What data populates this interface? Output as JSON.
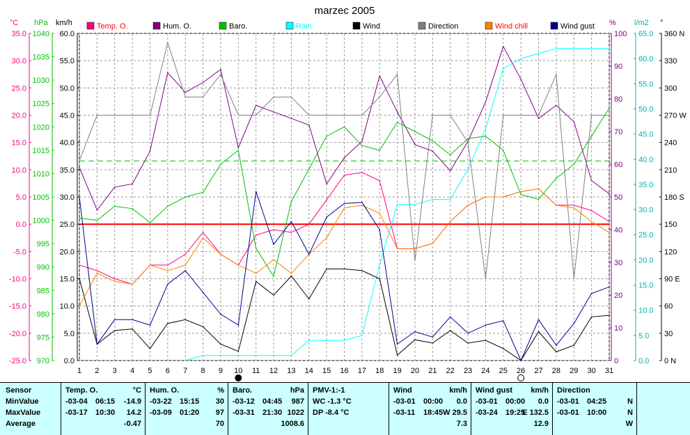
{
  "title": "marzec 2005",
  "unit_labels": {
    "temp": "°C",
    "baro": "hPa",
    "wind": "km/h",
    "hum": "%",
    "rain": "l/m2",
    "dir": "°"
  },
  "legend": [
    {
      "label": "Temp. O.",
      "color": "#ff0080"
    },
    {
      "label": "Hum. O.",
      "color": "#800080"
    },
    {
      "label": "Baro.",
      "color": "#00c000"
    },
    {
      "label": "Rain",
      "color": "#00ffff"
    },
    {
      "label": "Wind",
      "color": "#000000"
    },
    {
      "label": "Direction",
      "color": "#808080"
    },
    {
      "label": "Wind chill",
      "color": "#ff8000"
    },
    {
      "label": "Wind gust",
      "color": "#000090"
    }
  ],
  "chart_data": {
    "type": "line",
    "title": "marzec 2005",
    "x": [
      1,
      2,
      3,
      4,
      5,
      6,
      7,
      8,
      9,
      10,
      11,
      12,
      13,
      14,
      15,
      16,
      17,
      18,
      19,
      20,
      21,
      22,
      23,
      24,
      25,
      26,
      27,
      28,
      29,
      30,
      31
    ],
    "axes": {
      "temp": {
        "label": "°C",
        "range": [
          -25,
          35
        ],
        "step": 5,
        "color": "#ff0080"
      },
      "baro": {
        "label": "hPa",
        "range": [
          970,
          1040
        ],
        "step": 5,
        "color": "#00c000"
      },
      "wind": {
        "label": "km/h",
        "range": [
          0,
          60
        ],
        "step": 5,
        "color": "#000000"
      },
      "hum": {
        "label": "%",
        "range": [
          0,
          100
        ],
        "step": 10,
        "color": "#800080"
      },
      "rain": {
        "label": "l/m2",
        "range": [
          0,
          65
        ],
        "step": 5,
        "color": "#00ffff"
      },
      "dir": {
        "label": "°",
        "range": [
          0,
          360
        ],
        "step": 30,
        "color": "#000000",
        "ticks": [
          "0 N",
          "30",
          "60",
          "90 E",
          "120",
          "150",
          "180 S",
          "210",
          "240",
          "270 W",
          "300",
          "330",
          "360 N"
        ]
      }
    },
    "reference_lines": [
      {
        "axis": "temp",
        "value": 0,
        "color": "#ff0000"
      },
      {
        "axis": "hum",
        "value": 61,
        "color": "#00c000",
        "dashed": true
      }
    ],
    "grid": true,
    "series": [
      {
        "name": "Temp. O.",
        "axis": "temp",
        "color": "#ff0080",
        "values": [
          -7.5,
          -8.5,
          -10,
          -11,
          -7.5,
          -7.5,
          -5.5,
          -1.5,
          -5.5,
          -7.5,
          -2,
          -1,
          -1.5,
          0,
          4.5,
          9,
          9.5,
          8,
          -4.5,
          -4.5,
          -3.5,
          0.5,
          3.5,
          5,
          5,
          6,
          6.5,
          3.5,
          3.5,
          2.5,
          0.5
        ]
      },
      {
        "name": "Hum. O.",
        "axis": "hum",
        "color": "#800080",
        "values": [
          59,
          46,
          53,
          54,
          64,
          88,
          82,
          85,
          89,
          65,
          78,
          76,
          74,
          72,
          54,
          62,
          67,
          87,
          76,
          66,
          64,
          58,
          67,
          79,
          96,
          86,
          74,
          78,
          73,
          55,
          51
        ]
      },
      {
        "name": "Baro.",
        "axis": "baro",
        "color": "#00c000",
        "values": [
          1000.5,
          1000,
          1003,
          1002.5,
          999.5,
          1003,
          1005,
          1006,
          1012,
          1015,
          994,
          988,
          1004,
          1011,
          1018,
          1020,
          1016,
          1015,
          1021,
          1019,
          1017,
          1014,
          1017.5,
          1018,
          1015,
          1005.5,
          1004.5,
          1009,
          1012,
          1018,
          1024
        ]
      },
      {
        "name": "Rain",
        "axis": "rain",
        "color": "#00ffff",
        "values": [
          null,
          null,
          null,
          null,
          null,
          null,
          0,
          1,
          1,
          1,
          1,
          1,
          1,
          4,
          4,
          4,
          5,
          19,
          31,
          31,
          32,
          32,
          38,
          46,
          58,
          60,
          61,
          62,
          62,
          62,
          62
        ]
      },
      {
        "name": "Wind",
        "axis": "wind",
        "color": "#000000",
        "values": [
          15,
          3,
          5.5,
          5.8,
          2.2,
          6.8,
          7.5,
          6.2,
          3,
          1.7,
          14.5,
          12,
          15.5,
          11.3,
          16.8,
          16.8,
          16.5,
          15,
          1,
          3.8,
          3.2,
          5.5,
          3.2,
          3.7,
          2.2,
          0,
          5.3,
          1.6,
          2.8,
          8,
          8.3
        ]
      },
      {
        "name": "Direction",
        "axis": "dir",
        "color": "#808080",
        "values": [
          220,
          270,
          270,
          270,
          270,
          350,
          290,
          290,
          315,
          270,
          270,
          290,
          290,
          270,
          270,
          270,
          270,
          290,
          315,
          110,
          270,
          270,
          240,
          90,
          270,
          270,
          270,
          315,
          90,
          270,
          270
        ]
      },
      {
        "name": "Wind chill",
        "axis": "temp",
        "color": "#ff8000",
        "values": [
          -15,
          -9,
          -10.5,
          -11,
          -7.5,
          -8.5,
          -7.5,
          -2.5,
          -5.5,
          -7.5,
          -9,
          -6.5,
          -9,
          -5.5,
          -2.5,
          3,
          3.5,
          2,
          -4.5,
          -4.5,
          -3.5,
          0.5,
          3.5,
          5,
          5,
          6,
          6.5,
          3.5,
          3,
          0.5,
          -1.5
        ]
      },
      {
        "name": "Wind gust",
        "axis": "wind",
        "color": "#000090",
        "values": [
          30,
          3,
          7.5,
          7.5,
          6.5,
          14,
          16.5,
          12.5,
          8.5,
          6.5,
          31,
          21.3,
          25.5,
          19.5,
          26.3,
          28.8,
          29,
          24,
          3,
          5.3,
          4.3,
          8,
          5,
          6.5,
          7.3,
          0,
          7.5,
          2.8,
          6.8,
          12.3,
          13.5
        ]
      }
    ],
    "markers": [
      {
        "x": 10,
        "symbol": "new-moon",
        "fill": "#000000"
      },
      {
        "x": 26,
        "symbol": "full-moon",
        "fill": "#ffffff"
      }
    ]
  },
  "stats_table": {
    "rows": [
      "Sensor",
      "MinValue",
      "MaxValue",
      "Average"
    ],
    "columns": [
      {
        "header": "Temp. O.",
        "unit": "°C",
        "min_date": "-03-04",
        "min_time": "06:15",
        "min_val": "-14.9",
        "max_date": "-03-17",
        "max_time": "10:30",
        "max_val": "14.2",
        "avg": "-0.47"
      },
      {
        "header": "Hum. O.",
        "unit": "%",
        "min_date": "-03-22",
        "min_time": "15:15",
        "min_val": "30",
        "max_date": "-03-09",
        "max_time": "01:20",
        "max_val": "97",
        "avg": "70"
      },
      {
        "header": "Baro.",
        "unit": "hPa",
        "min_date": "-03-12",
        "min_time": "04:45",
        "min_val": "987",
        "max_date": "-03-31",
        "max_time": "21:30",
        "max_val": "1022",
        "avg": "1008.6"
      },
      {
        "header": "PMV-1:-1",
        "unit": "",
        "min_text": "WC -1.3 °C",
        "max_text": "DP -8.4 °C"
      },
      {
        "header": "Wind",
        "unit": "km/h",
        "min_date": "-03-01",
        "min_time": "00:00",
        "min_val": "0.0",
        "max_date": "-03-11",
        "max_time": "18:45",
        "max_val": "W 29.5",
        "avg": "7.3"
      },
      {
        "header": "Wind gust",
        "unit": "km/h",
        "min_date": "-03-01",
        "min_time": "00:00",
        "min_val": "0.0",
        "max_date": "-03-24",
        "max_time": "19:25",
        "max_val": "E 132.5",
        "avg": "12.9"
      },
      {
        "header": "Direction",
        "unit": "",
        "min_date": "-03-01",
        "min_time": "04:25",
        "min_val": "N",
        "max_date": "-03-01",
        "max_time": "10:00",
        "max_val": "N",
        "avg": "W"
      }
    ]
  }
}
